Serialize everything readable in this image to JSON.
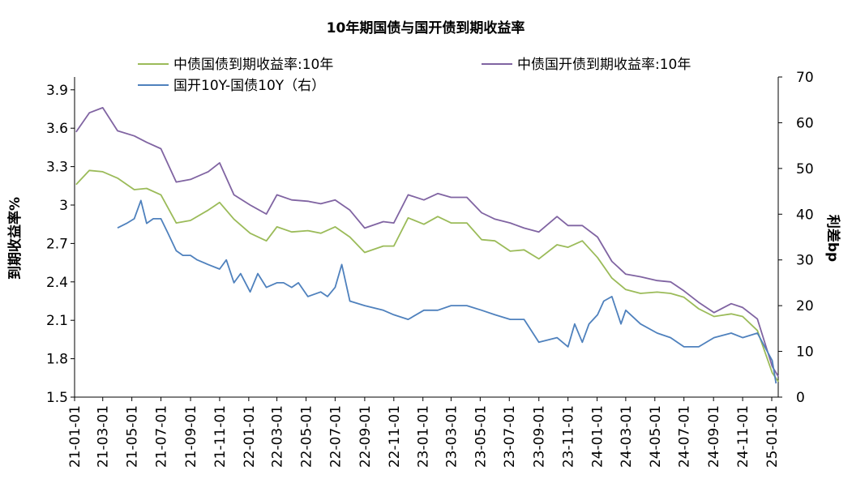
{
  "chart_data": {
    "type": "line",
    "title": "10年期国债与国开债到期收益率",
    "ylabel_left": "到期收益率%",
    "ylabel_right": "利差bp",
    "x_tick_labels": [
      "21-01-01",
      "21-03-01",
      "21-05-01",
      "21-07-01",
      "21-09-01",
      "21-11-01",
      "22-01-01",
      "22-03-01",
      "22-05-01",
      "22-07-01",
      "22-09-01",
      "22-11-01",
      "23-01-01",
      "23-03-01",
      "23-05-01",
      "23-07-01",
      "23-09-01",
      "23-11-01",
      "24-01-01",
      "24-03-01",
      "24-05-01",
      "24-07-01",
      "24-09-01",
      "24-11-01",
      "25-01-01"
    ],
    "ylim_left": [
      1.5,
      4.0
    ],
    "yticks_left": [
      "1.5",
      "1.8",
      "2.1",
      "2.4",
      "2.7",
      "3",
      "3.3",
      "3.6",
      "3.9"
    ],
    "ylim_right": [
      0,
      70
    ],
    "yticks_right": [
      "0",
      "10",
      "20",
      "30",
      "40",
      "50",
      "60",
      "70"
    ],
    "legend_position": "top",
    "grid": false,
    "series": [
      {
        "name": "中债国债到期收益率:10年",
        "axis": "left",
        "color": "#9BBB59",
        "x": [
          "2021-01-04",
          "2021-02-01",
          "2021-03-01",
          "2021-04-01",
          "2021-05-06",
          "2021-06-01",
          "2021-07-01",
          "2021-08-02",
          "2021-09-01",
          "2021-10-08",
          "2021-11-01",
          "2021-12-01",
          "2022-01-04",
          "2022-02-07",
          "2022-03-01",
          "2022-04-01",
          "2022-05-05",
          "2022-06-01",
          "2022-07-01",
          "2022-08-01",
          "2022-09-01",
          "2022-10-10",
          "2022-11-01",
          "2022-12-01",
          "2023-01-03",
          "2023-02-01",
          "2023-03-01",
          "2023-04-03",
          "2023-05-04",
          "2023-06-01",
          "2023-07-03",
          "2023-08-01",
          "2023-09-01",
          "2023-10-09",
          "2023-11-01",
          "2023-12-01",
          "2024-01-02",
          "2024-02-01",
          "2024-03-01",
          "2024-04-01",
          "2024-05-06",
          "2024-06-03",
          "2024-07-01",
          "2024-08-01",
          "2024-09-02",
          "2024-10-08",
          "2024-11-01",
          "2024-12-02",
          "2025-01-02",
          "2025-01-15"
        ],
        "values": [
          3.16,
          3.27,
          3.26,
          3.21,
          3.12,
          3.13,
          3.08,
          2.86,
          2.88,
          2.96,
          3.02,
          2.89,
          2.78,
          2.72,
          2.83,
          2.79,
          2.8,
          2.78,
          2.83,
          2.75,
          2.63,
          2.68,
          2.68,
          2.9,
          2.85,
          2.91,
          2.86,
          2.86,
          2.73,
          2.72,
          2.64,
          2.65,
          2.58,
          2.69,
          2.67,
          2.72,
          2.59,
          2.43,
          2.34,
          2.31,
          2.32,
          2.31,
          2.28,
          2.19,
          2.13,
          2.15,
          2.13,
          2.02,
          1.69,
          1.62
        ]
      },
      {
        "name": "中债国开债到期收益率:10年",
        "axis": "left",
        "color": "#8064A2",
        "x": [
          "2021-01-04",
          "2021-02-01",
          "2021-03-01",
          "2021-04-01",
          "2021-05-06",
          "2021-06-01",
          "2021-07-01",
          "2021-08-02",
          "2021-09-01",
          "2021-10-08",
          "2021-11-01",
          "2021-12-01",
          "2022-01-04",
          "2022-02-07",
          "2022-03-01",
          "2022-04-01",
          "2022-05-05",
          "2022-06-01",
          "2022-07-01",
          "2022-08-01",
          "2022-09-01",
          "2022-10-10",
          "2022-11-01",
          "2022-12-01",
          "2023-01-03",
          "2023-02-01",
          "2023-03-01",
          "2023-04-03",
          "2023-05-04",
          "2023-06-01",
          "2023-07-03",
          "2023-08-01",
          "2023-09-01",
          "2023-10-09",
          "2023-11-01",
          "2023-12-01",
          "2024-01-02",
          "2024-02-01",
          "2024-03-01",
          "2024-04-01",
          "2024-05-06",
          "2024-06-03",
          "2024-07-01",
          "2024-08-01",
          "2024-09-02",
          "2024-10-08",
          "2024-11-01",
          "2024-12-02",
          "2025-01-02",
          "2025-01-15"
        ],
        "values": [
          3.57,
          3.72,
          3.76,
          3.58,
          3.54,
          3.49,
          3.44,
          3.18,
          3.2,
          3.26,
          3.33,
          3.08,
          3.0,
          2.93,
          3.08,
          3.04,
          3.03,
          3.01,
          3.04,
          2.96,
          2.82,
          2.87,
          2.86,
          3.08,
          3.04,
          3.09,
          3.06,
          3.06,
          2.94,
          2.89,
          2.86,
          2.82,
          2.79,
          2.91,
          2.84,
          2.84,
          2.75,
          2.56,
          2.46,
          2.44,
          2.41,
          2.4,
          2.33,
          2.24,
          2.16,
          2.23,
          2.2,
          2.11,
          1.74,
          1.66
        ]
      },
      {
        "name": "国开10Y-国债10Y（右）",
        "axis": "right",
        "color": "#4F81BD",
        "x": [
          "2021-04-01",
          "2021-04-20",
          "2021-05-06",
          "2021-05-20",
          "2021-06-01",
          "2021-06-15",
          "2021-07-01",
          "2021-07-15",
          "2021-08-02",
          "2021-08-16",
          "2021-09-01",
          "2021-09-15",
          "2021-10-08",
          "2021-11-01",
          "2021-11-15",
          "2021-12-01",
          "2021-12-15",
          "2022-01-04",
          "2022-01-20",
          "2022-02-07",
          "2022-03-01",
          "2022-03-15",
          "2022-04-01",
          "2022-04-15",
          "2022-05-05",
          "2022-06-01",
          "2022-06-15",
          "2022-07-01",
          "2022-07-15",
          "2022-08-01",
          "2022-09-01",
          "2022-10-10",
          "2022-11-01",
          "2022-12-01",
          "2023-01-03",
          "2023-02-01",
          "2023-03-01",
          "2023-04-03",
          "2023-05-04",
          "2023-06-01",
          "2023-07-03",
          "2023-08-01",
          "2023-09-01",
          "2023-10-09",
          "2023-11-01",
          "2023-11-15",
          "2023-12-01",
          "2023-12-15",
          "2024-01-02",
          "2024-01-15",
          "2024-02-01",
          "2024-02-20",
          "2024-03-01",
          "2024-04-01",
          "2024-05-06",
          "2024-06-03",
          "2024-07-01",
          "2024-08-01",
          "2024-09-02",
          "2024-10-08",
          "2024-11-01",
          "2024-12-02",
          "2025-01-02",
          "2025-01-10"
        ],
        "values": [
          37,
          38,
          39,
          43,
          38,
          39,
          39,
          36,
          32,
          31,
          31,
          30,
          29,
          28,
          30,
          25,
          27,
          23,
          27,
          24,
          25,
          25,
          24,
          25,
          22,
          23,
          22,
          24,
          29,
          21,
          20,
          19,
          18,
          17,
          19,
          19,
          20,
          20,
          19,
          18,
          17,
          17,
          12,
          13,
          11,
          16,
          12,
          16,
          18,
          21,
          22,
          16,
          19,
          16,
          14,
          13,
          11,
          11,
          13,
          14,
          13,
          14,
          8,
          3
        ]
      }
    ]
  }
}
